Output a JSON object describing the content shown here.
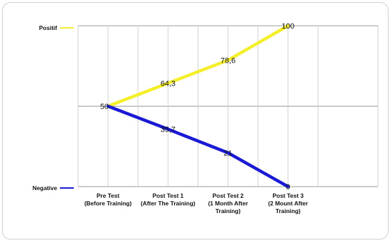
{
  "chart_data": {
    "type": "line",
    "categories": [
      [
        "Pre Test",
        "(Before Training)"
      ],
      [
        "Post Test 1",
        "(After The Training)"
      ],
      [
        "Post Test 2",
        "(1 Month After",
        "Training)"
      ],
      [
        "Post Test 3",
        "(2 Mount After",
        "Training)"
      ]
    ],
    "series": [
      {
        "name": "Positif",
        "values": [
          50,
          64.3,
          78.6,
          100
        ],
        "labels": [
          "50",
          "64,3",
          "78,6",
          "100"
        ],
        "color": "#f5ee2a"
      },
      {
        "name": "Negative",
        "values": [
          50,
          35.7,
          21,
          0
        ],
        "labels": [
          "",
          "35,7",
          "21",
          "0"
        ],
        "color": "#1a1ad6"
      }
    ],
    "ylim": [
      0,
      100
    ],
    "grid": true,
    "legend": "left",
    "colors": {
      "grid": "#9a9a9a",
      "frame": "#cfcfcf"
    }
  }
}
